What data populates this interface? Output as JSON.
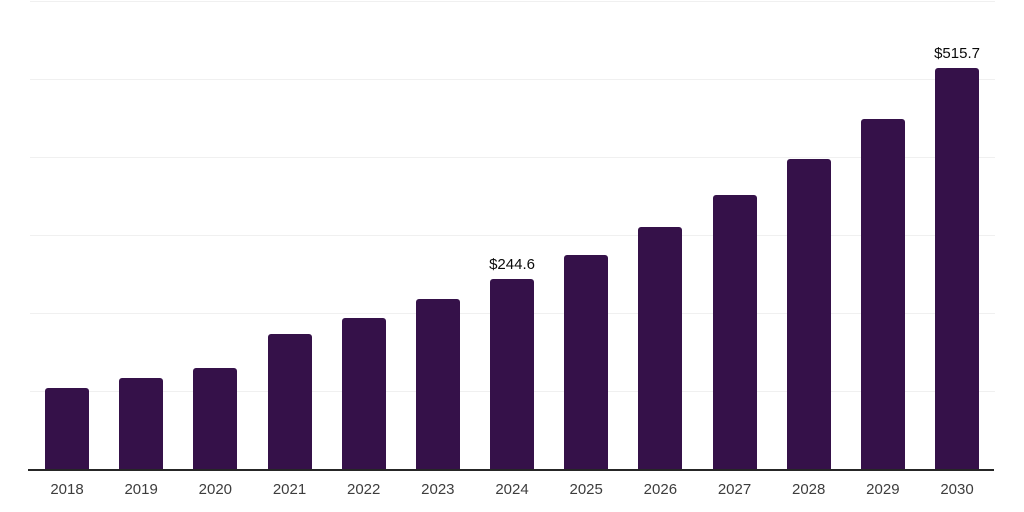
{
  "colors": {
    "background": "#ffffff",
    "bar": "#351149",
    "gridline": "#f0f0f0",
    "axis_line": "#262626",
    "tick_label": "#3d3d3d",
    "value_label": "#0a0a0a"
  },
  "chart_data": {
    "type": "bar",
    "title": "",
    "xlabel": "",
    "ylabel": "",
    "categories": [
      "2018",
      "2019",
      "2020",
      "2021",
      "2022",
      "2023",
      "2024",
      "2025",
      "2026",
      "2027",
      "2028",
      "2029",
      "2030"
    ],
    "values": [
      104.9,
      117.7,
      130.5,
      174.8,
      195.0,
      219.1,
      244.6,
      276.3,
      311.0,
      352.9,
      398.8,
      450.1,
      515.7
    ],
    "value_labels": [
      {
        "category": "2024",
        "text": "$244.6"
      },
      {
        "category": "2030",
        "text": "$515.7"
      }
    ],
    "ylim": [
      0,
      600
    ],
    "gridline_step": 100,
    "grid": true,
    "legend": false,
    "y_axis_tick_labels_visible": false,
    "x_axis_tick_labels_visible": true
  }
}
